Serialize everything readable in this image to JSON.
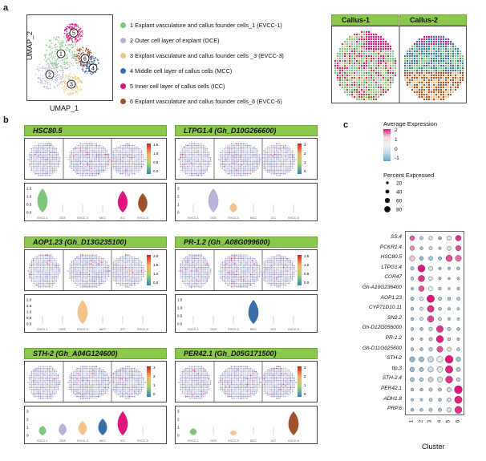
{
  "panels": {
    "a": "a",
    "b": "b",
    "c": "c"
  },
  "umap": {
    "xlabel": "UMAP_1",
    "ylabel": "UMAP_2",
    "cluster_labels": [
      "1",
      "2",
      "3",
      "4",
      "5",
      "6"
    ]
  },
  "legend": [
    {
      "text": "1 Explant vasculature and callus founder cells_1 (EVCC-1)",
      "color": "#7dc67b"
    },
    {
      "text": "2 Outer cell layer of explant (OCE)",
      "color": "#b9b3d8"
    },
    {
      "text": "3 Explant vasculature and callus founder cells _3 (EVCC-3)",
      "color": "#f3c58b"
    },
    {
      "text": "4 Middle cell layer of callus cells (MCC)",
      "color": "#3a6ea8"
    },
    {
      "text": "5 Inner cell layer of callus cells (ICC)",
      "color": "#e0147c"
    },
    {
      "text": "6 Explant vasculature and callus founder cells_6 (EVCC-6)",
      "color": "#a0522d"
    }
  ],
  "callus": {
    "c1": "Callus-1",
    "c2": "Callus-2"
  },
  "genes": [
    {
      "title": "HSC80.5",
      "scale_top": "1.5",
      "scale_mid": "1.0",
      "scale_bot": "0.5",
      "scale_base": "0.0",
      "vticks": [
        "1.5",
        "1.0",
        "0.5",
        "0.0"
      ]
    },
    {
      "title": "LTPG1.4 (Gh_D10G266600)",
      "scale_top": "3",
      "scale_mid": "2",
      "scale_bot": "1",
      "scale_base": "0",
      "vticks": [
        "3",
        "2",
        "1",
        "0"
      ]
    },
    {
      "title": "AOP1.23 (Gh_D13G235100)",
      "scale_top": "2.0",
      "scale_mid": "1.5",
      "scale_bot": "1.0",
      "scale_base": "0.5",
      "vticks": [
        "2.0",
        "1.5",
        "1.0",
        "0.5",
        "0.0"
      ]
    },
    {
      "title": "PR-1.2 (Gh_A08G099600)",
      "scale_top": "1.5",
      "scale_mid": "1.0",
      "scale_bot": "0.5",
      "scale_base": "0.0",
      "vticks": [
        "1.5",
        "1.0",
        "0.5",
        "0.0"
      ]
    },
    {
      "title": "STH-2 (Gh_A04G124600)",
      "scale_top": "3",
      "scale_mid": "2",
      "scale_bot": "1",
      "scale_base": "0",
      "vticks": [
        "3",
        "2",
        "1",
        "0"
      ]
    },
    {
      "title": "PER42.1 (Gh_D05G171500)",
      "scale_top": "3",
      "scale_mid": "2",
      "scale_bot": "1",
      "scale_base": "0",
      "vticks": [
        "3",
        "2",
        "1",
        "0"
      ]
    }
  ],
  "violin_xlabels": [
    "EVCC-1",
    "OCE",
    "EVCC-3",
    "MCC",
    "ICC",
    "EVCC-6"
  ],
  "dotplot": {
    "avg_title": "Average Expression",
    "avg_ticks": [
      "2",
      "1",
      "0",
      "-1"
    ],
    "pct_title": "Percent Expressed",
    "pct_ticks": [
      "20",
      "40",
      "60",
      "80"
    ],
    "xlabel": "Cluster",
    "clusters": [
      "1",
      "2",
      "3",
      "4",
      "5",
      "6"
    ],
    "genes": [
      "SS.4",
      "PCKR1.4",
      "HSC80.5",
      "LTPG1.4",
      "COR47",
      "Gh-A10G236400",
      "AOP1.23",
      "CYP71D10.11",
      "SN2.2",
      "Gh-D12G056000",
      "PR-1.2",
      "Gh-D11G025600",
      "STH-2",
      "tlp.3",
      "STH-2.4",
      "PER42.1",
      "ADH1.8",
      "PRP.6"
    ]
  },
  "chart_data": {
    "type": "heatmap",
    "title": "",
    "xlabel": "Cluster",
    "ylabel": "",
    "categories": [
      "1",
      "2",
      "3",
      "4",
      "5",
      "6"
    ],
    "rows": [
      "SS.4",
      "PCKR1.4",
      "HSC80.5",
      "LTPG1.4",
      "COR47",
      "Gh-A10G236400",
      "AOP1.23",
      "CYP71D10.11",
      "SN2.2",
      "Gh-D12G056000",
      "PR-1.2",
      "Gh-D11G025600",
      "STH-2",
      "tlp.3",
      "STH-2.4",
      "PER42.1",
      "ADH1.8",
      "PRP.6"
    ],
    "avg_expression": [
      [
        1.5,
        -0.2,
        0.2,
        -0.5,
        0.3,
        1.8
      ],
      [
        1.2,
        -0.3,
        0.0,
        -0.4,
        0.2,
        1.6
      ],
      [
        0.8,
        -0.6,
        -0.3,
        -0.5,
        1.6,
        1.4
      ],
      [
        -0.3,
        2.0,
        0.2,
        -0.6,
        -0.5,
        -0.4
      ],
      [
        -0.2,
        1.8,
        0.3,
        -0.5,
        -0.4,
        -0.3
      ],
      [
        -0.4,
        1.6,
        0.5,
        -0.3,
        -0.5,
        -0.4
      ],
      [
        -0.5,
        0.2,
        2.0,
        -0.4,
        -0.4,
        -0.3
      ],
      [
        -0.3,
        0.0,
        1.8,
        -0.2,
        -0.3,
        -0.2
      ],
      [
        -0.4,
        0.1,
        1.7,
        -0.1,
        -0.3,
        -0.2
      ],
      [
        -0.3,
        -0.4,
        0.0,
        1.8,
        -0.2,
        -0.4
      ],
      [
        -0.4,
        -0.5,
        -0.2,
        1.9,
        -0.3,
        -0.5
      ],
      [
        -0.3,
        -0.4,
        -0.1,
        1.6,
        0.2,
        -0.3
      ],
      [
        -0.6,
        -0.5,
        0.0,
        0.4,
        2.0,
        -0.4
      ],
      [
        -0.5,
        -0.4,
        0.1,
        0.3,
        1.9,
        -0.3
      ],
      [
        -0.4,
        -0.3,
        0.0,
        0.2,
        1.8,
        -0.2
      ],
      [
        -0.3,
        -0.4,
        -0.2,
        -0.3,
        0.1,
        2.0
      ],
      [
        -0.2,
        -0.3,
        -0.1,
        -0.4,
        0.0,
        1.9
      ],
      [
        -0.3,
        -0.2,
        -0.2,
        -0.3,
        0.2,
        1.8
      ]
    ],
    "pct_expressed": [
      [
        50,
        30,
        35,
        25,
        45,
        60
      ],
      [
        45,
        25,
        30,
        20,
        40,
        55
      ],
      [
        55,
        35,
        40,
        30,
        70,
        65
      ],
      [
        30,
        80,
        40,
        20,
        20,
        25
      ],
      [
        25,
        70,
        35,
        20,
        15,
        20
      ],
      [
        20,
        60,
        40,
        25,
        15,
        20
      ],
      [
        30,
        35,
        85,
        30,
        25,
        25
      ],
      [
        25,
        30,
        75,
        25,
        20,
        20
      ],
      [
        25,
        30,
        70,
        30,
        20,
        20
      ],
      [
        25,
        25,
        35,
        75,
        30,
        25
      ],
      [
        20,
        20,
        30,
        80,
        25,
        20
      ],
      [
        25,
        25,
        35,
        65,
        40,
        25
      ],
      [
        55,
        50,
        60,
        65,
        90,
        45
      ],
      [
        45,
        40,
        55,
        60,
        85,
        40
      ],
      [
        40,
        35,
        50,
        55,
        80,
        35
      ],
      [
        25,
        25,
        30,
        30,
        45,
        90
      ],
      [
        20,
        20,
        25,
        25,
        40,
        85
      ],
      [
        25,
        25,
        30,
        30,
        45,
        80
      ]
    ],
    "avg_range": [
      -1,
      2
    ],
    "pct_legend": [
      20,
      40,
      60,
      80
    ]
  }
}
